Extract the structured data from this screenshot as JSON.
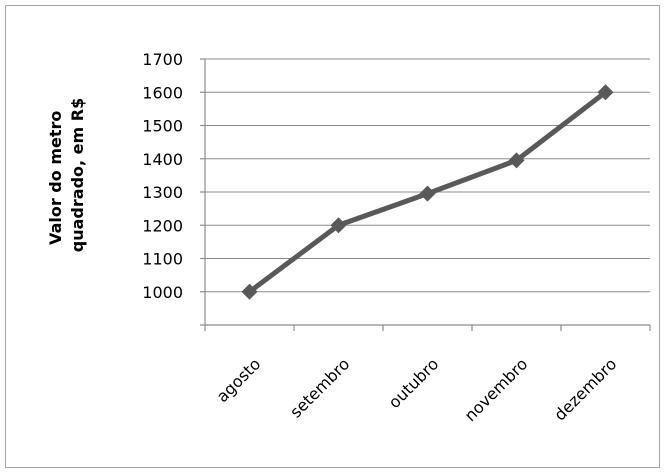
{
  "chart_data": {
    "type": "line",
    "categories": [
      "agosto",
      "setembro",
      "outubro",
      "novembro",
      "dezembro"
    ],
    "series": [
      {
        "values": [
          1000,
          1200,
          1295,
          1395,
          1600
        ],
        "color": "#595959",
        "marker": "diamond"
      }
    ],
    "ylabel_lines": [
      "Valor do metro",
      "quadrado, em R$"
    ],
    "ylim": [
      900,
      1700
    ],
    "y_ticks": [
      1000,
      1100,
      1200,
      1300,
      1400,
      1500,
      1600,
      1700
    ],
    "grid": true,
    "x_label_rotation": "45deg"
  }
}
